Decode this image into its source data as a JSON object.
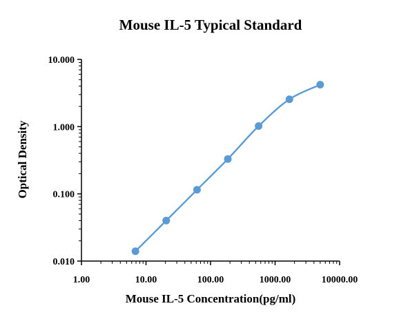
{
  "chart_data": {
    "type": "scatter",
    "title": "Mouse IL-5 Typical Standard",
    "xlabel": "Mouse IL-5 Concentration(pg/ml)",
    "ylabel": "Optical Density",
    "x_scale": "log",
    "y_scale": "log",
    "xlim": [
      1,
      10000
    ],
    "ylim": [
      0.01,
      10
    ],
    "x_ticks": [
      "1.00",
      "10.00",
      "100.00",
      "1000.00",
      "10000.00"
    ],
    "y_ticks": [
      "0.010",
      "0.100",
      "1.000",
      "10.000"
    ],
    "grid": false,
    "series": [
      {
        "color": "#5b9bd5",
        "x": [
          6.86,
          20.58,
          61.73,
          185.2,
          555.6,
          1666.7,
          5000
        ],
        "y": [
          0.014,
          0.04,
          0.115,
          0.33,
          1.02,
          2.55,
          4.2
        ]
      }
    ]
  }
}
